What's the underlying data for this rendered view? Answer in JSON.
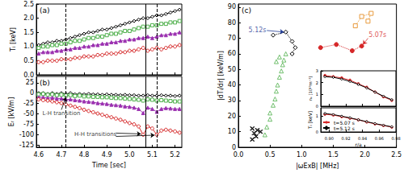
{
  "chart_data": [
    {
      "type": "line",
      "label": "(a)",
      "ylabel": "Tᵢ [keV]",
      "grid": false,
      "tick_labels": "y",
      "x": [
        4.6,
        4.62,
        4.64,
        4.66,
        4.68,
        4.7,
        4.72,
        4.74,
        4.76,
        4.78,
        4.8,
        4.82,
        4.84,
        4.86,
        4.88,
        4.9,
        4.92,
        4.94,
        4.96,
        4.98,
        5.0,
        5.02,
        5.04,
        5.06,
        5.08,
        5.1,
        5.12,
        5.14,
        5.16,
        5.18,
        5.2,
        5.22
      ],
      "xlim": [
        4.59,
        5.23
      ],
      "xticks": [
        4.6,
        4.7,
        4.8,
        4.9,
        {
          "value": 5,
          "label": "5.0"
        },
        5.1,
        5.2
      ],
      "ylim": [
        0,
        2.5
      ],
      "yticks": [
        {
          "value": 0,
          "label": "0.0"
        },
        0.5,
        {
          "value": 1,
          "label": "1.0"
        },
        1.5,
        {
          "value": 2,
          "label": "2.0"
        },
        2.5
      ],
      "vlines": [
        {
          "x": 4.72,
          "line_style": "dashed"
        },
        {
          "x": 5.07,
          "line_style": "solid"
        },
        {
          "x": 5.12,
          "line_style": "dashed"
        }
      ],
      "series": [
        {
          "color": "#000000",
          "marker": "open diamond",
          "values": [
            1.05,
            1.1,
            1.15,
            1.15,
            1.2,
            1.2,
            1.25,
            1.3,
            1.35,
            1.4,
            1.45,
            1.5,
            1.5,
            1.55,
            1.6,
            1.6,
            1.65,
            1.7,
            1.75,
            1.8,
            1.85,
            1.9,
            1.95,
            2.0,
            2.0,
            2.05,
            2.1,
            2.1,
            2.15,
            2.2,
            2.25,
            2.3
          ]
        },
        {
          "color": "#4daf4a",
          "marker": "open square",
          "values": [
            0.95,
            1.0,
            1.0,
            1.05,
            1.05,
            1.1,
            1.1,
            1.15,
            1.2,
            1.2,
            1.25,
            1.3,
            1.3,
            1.35,
            1.35,
            1.4,
            1.45,
            1.45,
            1.5,
            1.55,
            1.55,
            1.6,
            1.65,
            1.7,
            1.7,
            1.75,
            1.75,
            1.8,
            1.8,
            1.85,
            1.85,
            1.9
          ]
        },
        {
          "color": "#9b30b0",
          "marker": "filled triangle",
          "values": [
            0.75,
            0.8,
            0.8,
            0.8,
            0.85,
            0.85,
            0.9,
            0.9,
            0.95,
            0.95,
            1.0,
            1.0,
            1.05,
            1.05,
            1.1,
            1.1,
            1.15,
            1.15,
            1.2,
            1.2,
            1.25,
            1.25,
            1.3,
            1.3,
            1.35,
            1.3,
            1.35,
            1.4,
            1.4,
            1.45,
            1.45,
            1.5
          ]
        },
        {
          "color": "#d62728",
          "marker": "open circle",
          "values": [
            0.45,
            0.45,
            0.5,
            0.5,
            0.5,
            0.55,
            0.55,
            0.55,
            0.6,
            0.6,
            0.65,
            0.65,
            0.65,
            0.7,
            0.7,
            0.75,
            0.75,
            0.75,
            0.8,
            0.8,
            0.85,
            0.85,
            0.9,
            0.95,
            0.85,
            0.9,
            0.95,
            0.9,
            0.95,
            1.0,
            1.0,
            1.05
          ]
        }
      ]
    },
    {
      "type": "line",
      "label": "(b)",
      "xlabel": "Time [sec]",
      "ylabel": "Eᵣ [kV/m]",
      "grid": false,
      "x": [
        4.6,
        4.62,
        4.64,
        4.66,
        4.68,
        4.7,
        4.72,
        4.74,
        4.76,
        4.78,
        4.8,
        4.82,
        4.84,
        4.86,
        4.88,
        4.9,
        4.92,
        4.94,
        4.96,
        4.98,
        5.0,
        5.02,
        5.04,
        5.06,
        5.08,
        5.1,
        5.12,
        5.14,
        5.16,
        5.18,
        5.2,
        5.22
      ],
      "xlim": [
        4.59,
        5.23
      ],
      "xticks": [
        4.6,
        4.7,
        4.8,
        4.9,
        {
          "value": 5,
          "label": "5.0"
        },
        5.1,
        5.2
      ],
      "ylim": [
        -130,
        40
      ],
      "yticks": [
        25,
        0,
        -25,
        -50,
        -75,
        -100,
        -125
      ],
      "vlines": [
        {
          "x": 4.72,
          "line_style": "dashed"
        },
        {
          "x": 5.07,
          "line_style": "solid"
        },
        {
          "x": 5.12,
          "line_style": "dashed"
        }
      ],
      "annotations": [
        {
          "text": "L-H transition",
          "x": 4.7,
          "y": -48,
          "arrows": [
            {
              "from": [
                4.7,
                -40
              ],
              "to": [
                4.72,
                -10
              ]
            }
          ]
        },
        {
          "text": "H-H transitions",
          "x": 4.85,
          "y": -100,
          "arrows": [
            {
              "from": [
                4.94,
                -96
              ],
              "to": [
                5.05,
                -98
              ]
            },
            {
              "from": [
                4.94,
                -104
              ],
              "to": [
                5.11,
                -101
              ]
            }
          ]
        }
      ],
      "series": [
        {
          "color": "#000000",
          "marker": "open diamond",
          "values": [
            0,
            0,
            -2,
            0,
            -2,
            0,
            -2,
            0,
            -3,
            -2,
            -3,
            -2,
            -3,
            -3,
            -4,
            -3,
            -4,
            -4,
            -5,
            -4,
            -5,
            -5,
            -6,
            -6,
            -5,
            -6,
            -6,
            -5,
            -6,
            -6,
            -7,
            -6
          ]
        },
        {
          "color": "#4daf4a",
          "marker": "open square",
          "values": [
            -3,
            -2,
            -4,
            -3,
            -5,
            -4,
            -6,
            -5,
            -7,
            -6,
            -8,
            -8,
            -9,
            -9,
            -10,
            -10,
            -11,
            -12,
            -12,
            -13,
            -14,
            -15,
            -16,
            -18,
            -15,
            -16,
            -18,
            -17,
            -18,
            -19,
            -20,
            -20
          ]
        },
        {
          "color": "#9b30b0",
          "marker": "filled triangle",
          "values": [
            -10,
            -10,
            -12,
            -11,
            -13,
            -13,
            -15,
            -15,
            -17,
            -18,
            -20,
            -21,
            -22,
            -24,
            -25,
            -26,
            -28,
            -29,
            -30,
            -32,
            -33,
            -35,
            -38,
            -48,
            -35,
            -38,
            -45,
            -38,
            -36,
            -37,
            -38,
            -38
          ]
        },
        {
          "color": "#d62728",
          "marker": "open circle",
          "values": [
            -15,
            -17,
            -18,
            -20,
            -22,
            -24,
            -27,
            -30,
            -33,
            -36,
            -40,
            -43,
            -46,
            -49,
            -52,
            -55,
            -58,
            -61,
            -64,
            -68,
            -72,
            -75,
            -80,
            -100,
            -80,
            -85,
            -100,
            -90,
            -88,
            -90,
            -92,
            -95
          ]
        }
      ]
    },
    {
      "type": "scatter",
      "label": "(c)",
      "xlabel": "|ωExB| [MHz]",
      "ylabel": "|dTᵢ/dr| [keV/m]",
      "grid": false,
      "xlim": [
        0,
        2.5
      ],
      "xticks": [
        {
          "value": 0,
          "label": "0.0"
        },
        0.5,
        {
          "value": 1,
          "label": "1.0"
        },
        1.5,
        {
          "value": 2,
          "label": "2.0"
        },
        2.5
      ],
      "ylim": [
        0,
        92
      ],
      "yticks": [
        0,
        10,
        20,
        30,
        40,
        50,
        60,
        70,
        80,
        90
      ],
      "annotations": [
        {
          "text": "5.12s",
          "x": 0.3,
          "y": 75,
          "color": "#1f3a93",
          "arrows": [
            {
              "from": [
                0.45,
                75
              ],
              "to": [
                0.72,
                74
              ]
            }
          ]
        },
        {
          "text": "5.07s",
          "x": 2.2,
          "y": 72,
          "color": "#d62728",
          "arrows": [
            {
              "from": [
                2.05,
                70
              ],
              "to": [
                1.97,
                66
              ]
            }
          ]
        }
      ],
      "series": [
        {
          "type": "line",
          "line_style": "dotted",
          "color": "#e89a3c",
          "marker": "open square",
          "x": [
            1.85,
            1.95,
            2.1,
            2.05
          ],
          "values": [
            78,
            84,
            86,
            81
          ]
        },
        {
          "type": "line",
          "line_style": "dotted",
          "color": "#d62728",
          "marker": "filled circle",
          "x": [
            1.3,
            1.55,
            1.8,
            1.95
          ],
          "values": [
            64,
            66,
            62,
            65
          ]
        },
        {
          "type": "line",
          "line_style": "dotted",
          "color": "#000000",
          "marker": "open diamond",
          "x": [
            0.55,
            0.75,
            0.85,
            0.9,
            0.85
          ],
          "values": [
            72,
            74,
            68,
            64,
            60
          ]
        },
        {
          "type": "scatter",
          "color": "#4daf4a",
          "marker": "open triangle",
          "x": [
            0.42,
            0.45,
            0.5,
            0.5,
            0.55,
            0.58,
            0.6,
            0.62,
            0.65,
            0.68,
            0.7,
            0.72,
            0.75,
            0.6,
            0.65
          ],
          "values": [
            8,
            13,
            18,
            22,
            27,
            31,
            36,
            40,
            45,
            49,
            53,
            56,
            60,
            55,
            58
          ]
        },
        {
          "type": "scatter",
          "color": "#000000",
          "marker": "x",
          "x": [
            0.22,
            0.25,
            0.28,
            0.3,
            0.35,
            0.22
          ],
          "values": [
            12,
            9,
            7,
            11,
            10,
            5
          ]
        }
      ]
    },
    {
      "type": "line",
      "ylabel": "nₑ [10¹⁹m⁻³]",
      "grid": false,
      "tick_labels": "y",
      "x": [
        0.895,
        0.905,
        0.915,
        0.925,
        0.935,
        0.945,
        0.955,
        0.965,
        0.975
      ],
      "xlim": [
        0.89,
        0.98
      ],
      "xticks": [
        {
          "value": 0.9,
          "label": "0.90"
        },
        0.92,
        0.94,
        0.96,
        0.98
      ],
      "ylim": [
        0,
        3
      ],
      "yticks": [
        0,
        1,
        2,
        3
      ],
      "series": [
        {
          "name": "t=5.07 s",
          "color": "#d62728",
          "marker": "filled circle",
          "values": [
            2.6,
            2.5,
            2.4,
            2.2,
            1.9,
            1.6,
            1.2,
            0.8,
            0.5
          ]
        },
        {
          "name": "t=5.12 s",
          "color": "#000000",
          "marker": "open diamond",
          "values": [
            2.5,
            2.45,
            2.3,
            2.1,
            1.85,
            1.55,
            1.2,
            0.85,
            0.55
          ]
        }
      ]
    },
    {
      "type": "line",
      "xlabel": "r/a",
      "ylabel": "Tᵢ [keV]",
      "grid": false,
      "legend": "lower left",
      "x": [
        0.895,
        0.905,
        0.915,
        0.925,
        0.935,
        0.945,
        0.955,
        0.965,
        0.975
      ],
      "xlim": [
        0.89,
        0.98
      ],
      "xticks": [
        {
          "value": 0.9,
          "label": "0.90"
        },
        0.92,
        0.94,
        0.96,
        0.98
      ],
      "ylim": [
        0,
        1.5
      ],
      "yticks": [
        0,
        1
      ],
      "series": [
        {
          "name": "t=5.07 s",
          "color": "#d62728",
          "marker": "filled circle",
          "values": [
            1.1,
            1.05,
            0.95,
            0.85,
            0.75,
            0.62,
            0.5,
            0.4,
            0.3
          ]
        },
        {
          "name": "t=5.12 s",
          "color": "#000000",
          "marker": "open diamond",
          "values": [
            1.15,
            1.08,
            0.98,
            0.88,
            0.76,
            0.64,
            0.52,
            0.42,
            0.32
          ]
        }
      ]
    }
  ]
}
